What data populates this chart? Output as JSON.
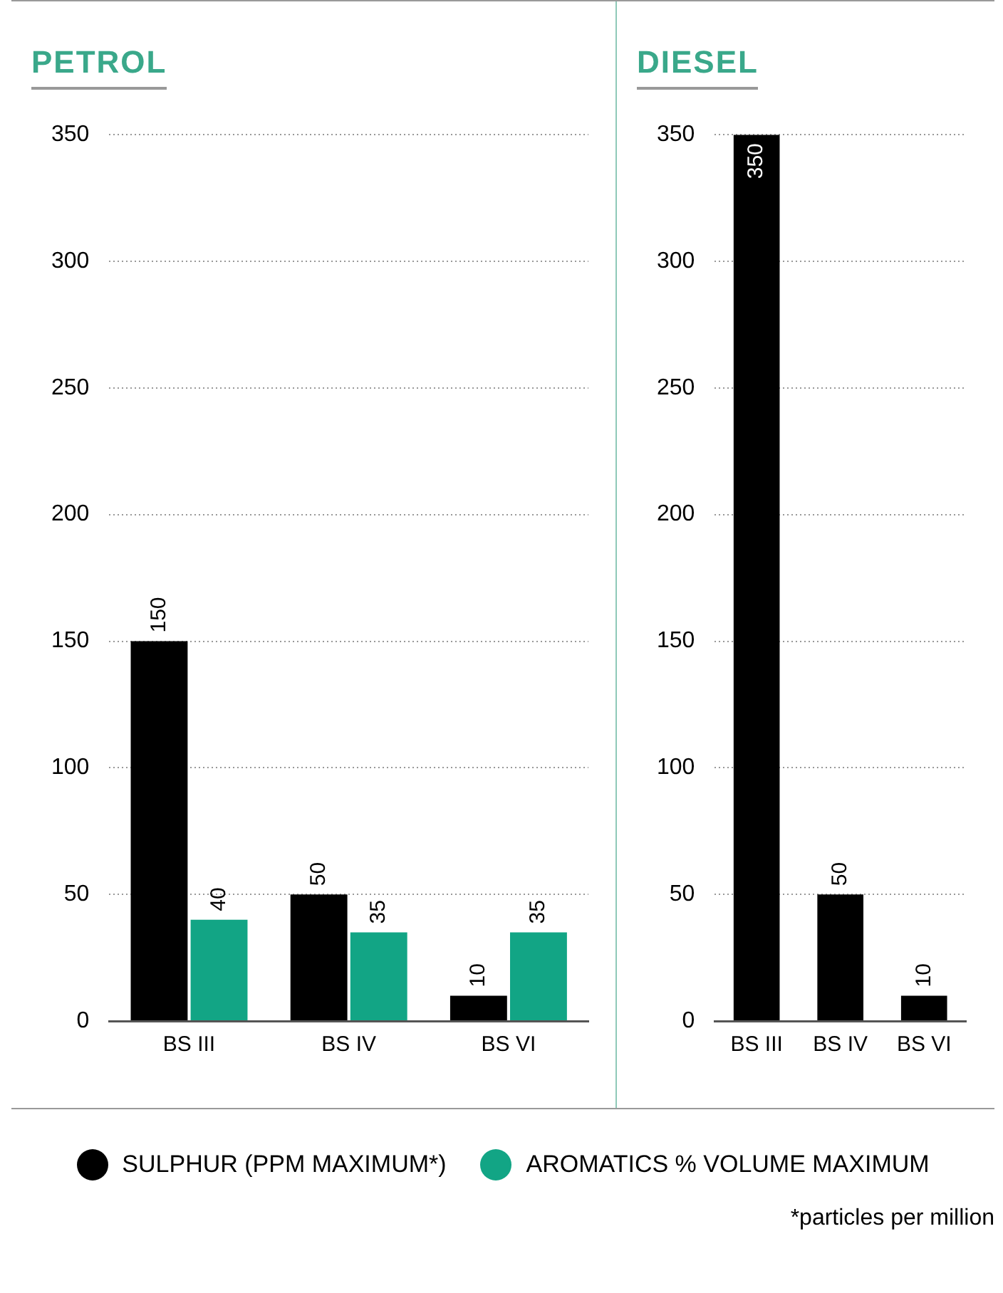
{
  "chart_data": [
    {
      "type": "bar",
      "title": "PETROL",
      "categories": [
        "BS III",
        "BS IV",
        "BS VI"
      ],
      "series": [
        {
          "name": "SULPHUR (PPM MAXIMUM*)",
          "color": "#000000",
          "values": [
            150,
            50,
            10
          ]
        },
        {
          "name": "AROMATICS % VOLUME MAXIMUM",
          "color": "#12a585",
          "values": [
            40,
            35,
            35
          ]
        }
      ],
      "ylim": [
        0,
        350
      ],
      "yticks": [
        0,
        50,
        100,
        150,
        200,
        250,
        300,
        350
      ],
      "grid": "y",
      "data_labels": true,
      "legend": "bottom"
    },
    {
      "type": "bar",
      "title": "DIESEL",
      "categories": [
        "BS III",
        "BS IV",
        "BS VI"
      ],
      "series": [
        {
          "color": "#000000",
          "values": [
            350,
            50,
            10
          ]
        }
      ],
      "ylim": [
        0,
        350
      ],
      "yticks": [
        0,
        50,
        100,
        150,
        200,
        250,
        300,
        350
      ],
      "grid": "y",
      "data_labels": true,
      "annotations": [
        "*particles per million"
      ]
    }
  ]
}
